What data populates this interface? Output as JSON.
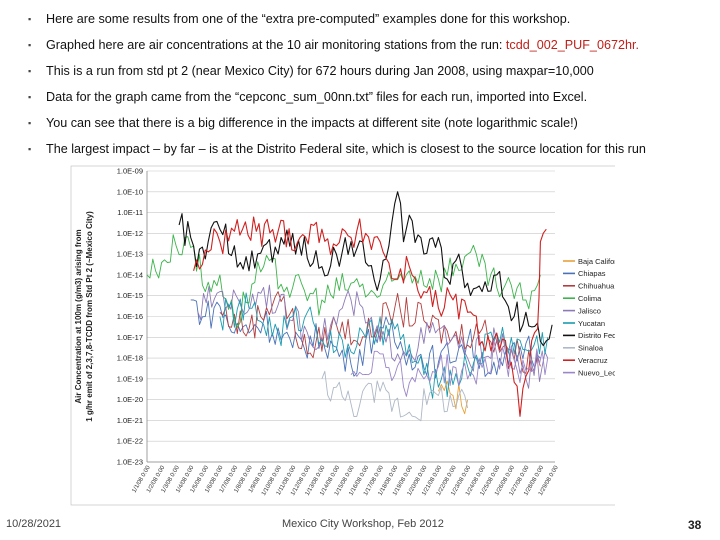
{
  "bullets": [
    {
      "text": "Here are some results from one of the “extra pre-computed” examples done for this workshop.",
      "highlight": ""
    },
    {
      "text": "Graphed here are air concentrations at the 10 air monitoring stations from the run: ",
      "highlight": "tcdd_002_PUF_0672hr."
    },
    {
      "text": "This is a run from std pt 2 (near Mexico City) for 672 hours during Jan 2008, using maxpar=10,000",
      "highlight": ""
    },
    {
      "text": "Data for the graph came from the “cepconc_sum_00nn.txt” files for each run, imported into Excel.",
      "highlight": ""
    },
    {
      "text": "You can see that there is a big difference in the impacts at different site (note logarithmic scale!)",
      "highlight": ""
    },
    {
      "text": "The largest impact – by far – is at the Distrito Federal site, which is closest to the source location for this run",
      "highlight": ""
    }
  ],
  "footer": {
    "date": "10/28/2021",
    "center": "Mexico City Workshop, Feb 2012",
    "page": "38"
  },
  "colors": {
    "highlight": "#c0201a"
  },
  "chart_data": {
    "type": "line",
    "title": "",
    "xlabel": "",
    "ylabel": "Air Concentration at 100m (g/m3) arising from 1 g/hr emit of 2,3,7,8-TCDD from Std Pt 2 (~Mexico City)",
    "yscale": "log",
    "ylim": [
      1e-23,
      1e-09
    ],
    "yticks": [
      "1.0E-09",
      "1.0E-10",
      "1.0E-11",
      "1.0E-12",
      "1.0E-13",
      "1.0E-14",
      "1.0E-15",
      "1.0E-16",
      "1.0E-17",
      "1.0E-18",
      "1.0E-19",
      "1.0E-20",
      "1.0E-21",
      "1.0E-22",
      "1.0E-23"
    ],
    "xticks": [
      "1/1/08 0:00",
      "1/2/08 0:00",
      "1/3/08 0:00",
      "1/4/08 0:00",
      "1/5/08 0:00",
      "1/6/08 0:00",
      "1/7/08 0:00",
      "1/8/08 0:00",
      "1/9/08 0:00",
      "1/10/08 0:00",
      "1/11/08 0:00",
      "1/12/08 0:00",
      "1/13/08 0:00",
      "1/14/08 0:00",
      "1/15/08 0:00",
      "1/16/08 0:00",
      "1/17/08 0:00",
      "1/18/08 0:00",
      "1/19/08 0:00",
      "1/20/08 0:00",
      "1/21/08 0:00",
      "1/22/08 0:00",
      "1/23/08 0:00",
      "1/24/08 0:00",
      "1/25/08 0:00",
      "1/26/08 0:00",
      "1/27/08 0:00",
      "1/28/08 0:00",
      "1/29/08 0:00"
    ],
    "grid": true,
    "legend_position": "right",
    "x_range_days": [
      0,
      28
    ],
    "series": [
      {
        "name": "Baja California",
        "color": "#e8a23a",
        "points": [
          [
            20.0,
            -19.6
          ],
          [
            21.0,
            -19.8
          ],
          [
            22.0,
            -20.0
          ]
        ]
      },
      {
        "name": "Chiapas",
        "color": "#4a72b8",
        "points": [
          [
            3.0,
            -15.2
          ],
          [
            4.0,
            -16.0
          ],
          [
            5.0,
            -15.5
          ],
          [
            6.0,
            -16.8
          ],
          [
            8.0,
            -16.2
          ],
          [
            10.0,
            -17.5
          ],
          [
            12.0,
            -17.0
          ],
          [
            14.0,
            -18.3
          ],
          [
            16.0,
            -16.5
          ],
          [
            18.0,
            -17.8
          ],
          [
            20.0,
            -18.2
          ],
          [
            22.0,
            -17.2
          ],
          [
            24.0,
            -18.8
          ],
          [
            26.0,
            -17.3
          ],
          [
            27.0,
            -18.0
          ]
        ]
      },
      {
        "name": "Chihuahua",
        "color": "#b43c3c",
        "points": [
          [
            5.0,
            -15.8
          ],
          [
            7.0,
            -16.6
          ],
          [
            9.0,
            -14.8
          ],
          [
            11.0,
            -17.8
          ],
          [
            13.0,
            -16.4
          ],
          [
            15.0,
            -17.0
          ],
          [
            17.0,
            -15.6
          ],
          [
            19.0,
            -16.2
          ],
          [
            21.0,
            -17.0
          ],
          [
            23.0,
            -16.6
          ],
          [
            25.0,
            -17.6
          ],
          [
            27.0,
            -18.4
          ]
        ]
      },
      {
        "name": "Colima",
        "color": "#3cb44b",
        "points": [
          [
            0.0,
            -14.0
          ],
          [
            1.0,
            -13.4
          ],
          [
            2.0,
            -12.6
          ],
          [
            2.6,
            -12.2
          ],
          [
            3.2,
            -12.6
          ],
          [
            4.0,
            -14.8
          ],
          [
            5.0,
            -14.0
          ],
          [
            6.0,
            -16.2
          ],
          [
            8.0,
            -13.6
          ],
          [
            10.0,
            -14.6
          ],
          [
            12.0,
            -15.2
          ],
          [
            14.0,
            -14.4
          ],
          [
            16.0,
            -15.0
          ],
          [
            18.0,
            -13.8
          ],
          [
            20.0,
            -14.2
          ],
          [
            22.0,
            -13.0
          ],
          [
            24.0,
            -14.6
          ],
          [
            26.0,
            -15.2
          ],
          [
            27.0,
            -14.0
          ]
        ]
      },
      {
        "name": "Jalisco",
        "color": "#8c7ab8",
        "points": [
          [
            3.5,
            -15.8
          ],
          [
            5.0,
            -14.8
          ],
          [
            6.5,
            -15.6
          ],
          [
            8.0,
            -14.6
          ],
          [
            10.0,
            -16.2
          ],
          [
            12.0,
            -17.0
          ],
          [
            14.0,
            -15.2
          ],
          [
            16.0,
            -17.2
          ],
          [
            18.0,
            -17.6
          ],
          [
            20.0,
            -16.6
          ],
          [
            22.0,
            -18.0
          ],
          [
            24.0,
            -17.2
          ],
          [
            26.0,
            -19.0
          ],
          [
            27.5,
            -18.0
          ]
        ]
      },
      {
        "name": "Yucatan",
        "color": "#1a9bb0",
        "points": [
          [
            5.0,
            -16.0
          ],
          [
            7.0,
            -15.6
          ],
          [
            9.0,
            -16.8
          ],
          [
            11.0,
            -15.8
          ],
          [
            13.0,
            -17.6
          ],
          [
            15.0,
            -17.0
          ],
          [
            17.0,
            -16.6
          ],
          [
            19.0,
            -18.8
          ],
          [
            20.0,
            -19.4
          ],
          [
            22.0,
            -18.4
          ],
          [
            24.0,
            -16.8
          ],
          [
            26.0,
            -17.6
          ],
          [
            27.5,
            -17.0
          ]
        ]
      },
      {
        "name": "Distrito Federal",
        "color": "#111111",
        "points": [
          [
            2.2,
            -11.6
          ],
          [
            3.0,
            -12.2
          ],
          [
            3.4,
            -13.6
          ],
          [
            4.2,
            -12.4
          ],
          [
            5.0,
            -11.8
          ],
          [
            6.0,
            -12.6
          ],
          [
            7.0,
            -13.8
          ],
          [
            8.0,
            -12.6
          ],
          [
            9.0,
            -13.0
          ],
          [
            10.0,
            -12.0
          ],
          [
            11.0,
            -13.2
          ],
          [
            12.0,
            -13.6
          ],
          [
            13.0,
            -13.0
          ],
          [
            14.0,
            -12.4
          ],
          [
            15.0,
            -13.4
          ],
          [
            16.0,
            -14.2
          ],
          [
            16.6,
            -12.6
          ],
          [
            17.2,
            -10.0
          ],
          [
            17.6,
            -12.4
          ],
          [
            18.2,
            -11.4
          ],
          [
            19.0,
            -13.0
          ],
          [
            20.0,
            -12.2
          ],
          [
            20.6,
            -14.2
          ],
          [
            21.4,
            -13.0
          ],
          [
            22.0,
            -14.4
          ],
          [
            23.0,
            -14.8
          ],
          [
            24.0,
            -14.0
          ],
          [
            25.0,
            -16.2
          ],
          [
            26.0,
            -15.8
          ],
          [
            27.0,
            -17.2
          ],
          [
            27.8,
            -16.4
          ]
        ]
      },
      {
        "name": "Sinaloa",
        "color": "#aeb8c6",
        "points": [
          [
            12.0,
            -19.0
          ],
          [
            14.0,
            -20.2
          ],
          [
            16.0,
            -19.6
          ],
          [
            18.0,
            -20.6
          ],
          [
            20.0,
            -19.8
          ],
          [
            22.0,
            -20.4
          ]
        ]
      },
      {
        "name": "Veracruz",
        "color": "#d02020",
        "points": [
          [
            3.2,
            -13.8
          ],
          [
            4.0,
            -12.8
          ],
          [
            5.0,
            -12.4
          ],
          [
            6.0,
            -11.9
          ],
          [
            7.5,
            -11.9
          ],
          [
            9.0,
            -11.9
          ],
          [
            10.5,
            -12.2
          ],
          [
            12.0,
            -11.8
          ],
          [
            13.0,
            -12.6
          ],
          [
            14.0,
            -12.2
          ],
          [
            15.0,
            -12.0
          ],
          [
            16.0,
            -12.4
          ],
          [
            17.0,
            -14.2
          ],
          [
            18.0,
            -13.6
          ],
          [
            19.0,
            -14.8
          ],
          [
            20.0,
            -15.6
          ],
          [
            21.0,
            -15.2
          ],
          [
            22.0,
            -15.8
          ],
          [
            23.0,
            -17.2
          ],
          [
            24.0,
            -16.8
          ],
          [
            25.0,
            -18.2
          ],
          [
            25.6,
            -20.8
          ],
          [
            26.2,
            -18.6
          ],
          [
            26.8,
            -16.6
          ],
          [
            27.0,
            -12.4
          ],
          [
            27.4,
            -11.8
          ]
        ]
      },
      {
        "name": "Nuevo_Leon",
        "color": "#9a86c8",
        "points": [
          [
            14.0,
            -18.8
          ],
          [
            16.0,
            -17.8
          ],
          [
            18.0,
            -19.2
          ],
          [
            20.0,
            -18.4
          ],
          [
            22.0,
            -19.0
          ],
          [
            24.0,
            -17.8
          ],
          [
            26.0,
            -18.6
          ],
          [
            27.5,
            -18.0
          ]
        ]
      }
    ]
  }
}
